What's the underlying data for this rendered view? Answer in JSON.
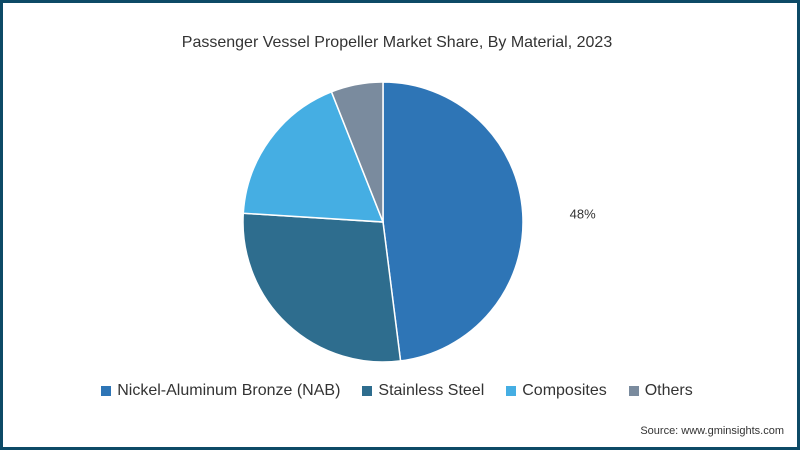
{
  "chart_data": {
    "type": "pie",
    "title": "Passenger Vessel Propeller Market Share, By Material, 2023",
    "categories": [
      "Nickel-Aluminum Bronze (NAB)",
      "Stainless Steel",
      "Composites",
      "Others"
    ],
    "values": [
      48,
      28,
      18,
      6
    ],
    "colors": [
      "#2e75b6",
      "#2e6d8e",
      "#45aee3",
      "#7a8b9e"
    ],
    "data_labels": [
      "48%",
      "",
      "",
      ""
    ],
    "legend_position": "bottom",
    "source": "Source: www.gminsights.com"
  }
}
